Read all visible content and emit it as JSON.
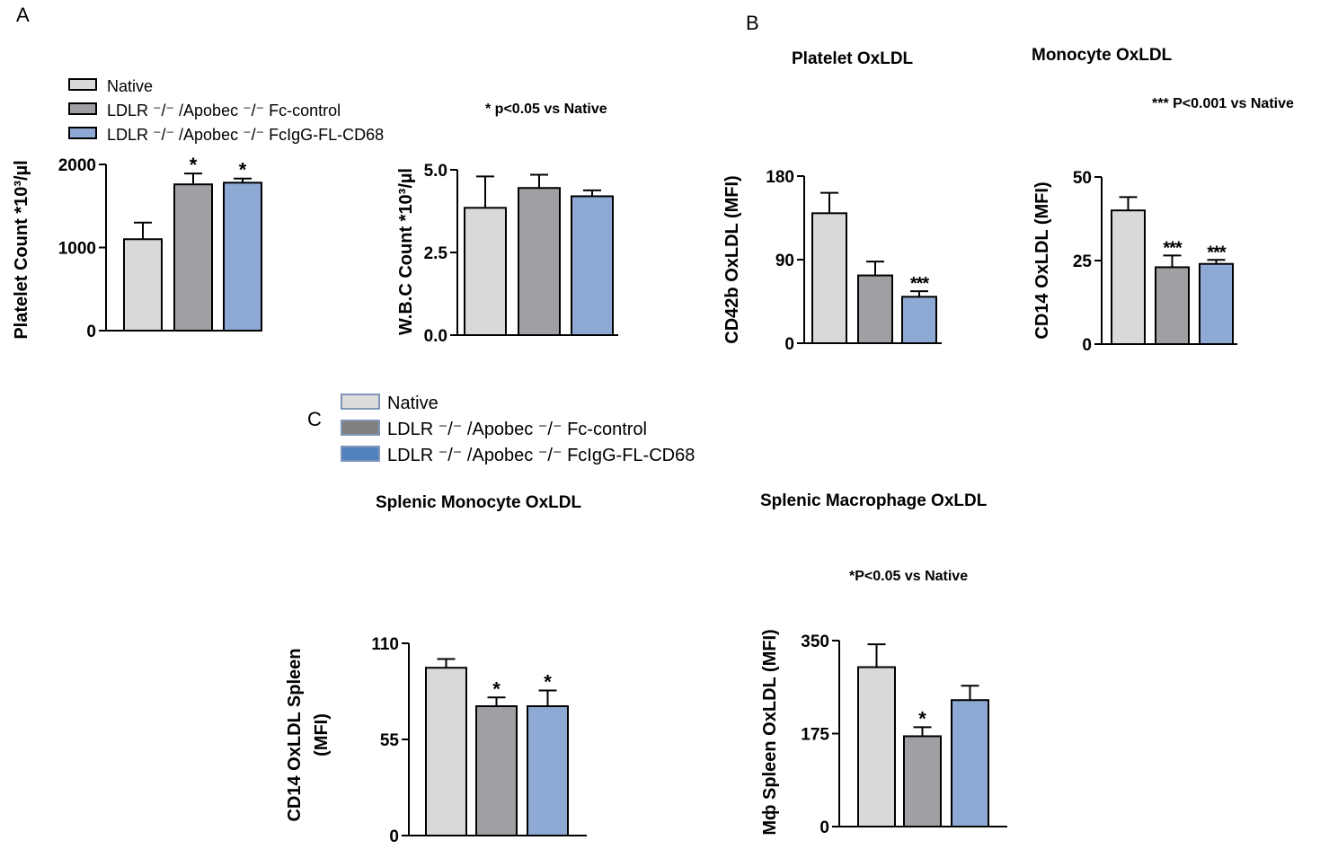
{
  "panels": {
    "a": "A",
    "b": "B",
    "c": "C"
  },
  "legend_a": {
    "items": [
      {
        "pre": "Native",
        "post": "",
        "color": "#d9d9d9"
      },
      {
        "pre": "LDLR ⁻/⁻ /Apobec ⁻/⁻ Fc-control",
        "post": "",
        "color": "#a0a0a4"
      },
      {
        "pre": "LDLR ⁻/⁻ /Apobec ⁻/⁻ FcIgG-FL-CD68",
        "post": "",
        "color": "#8eaad4"
      }
    ]
  },
  "legend_c": {
    "items": [
      {
        "label": "Native",
        "color": "#dcdcdc"
      },
      {
        "label": "LDLR ⁻/⁻ /Apobec ⁻/⁻ Fc-control",
        "color": "#808080"
      },
      {
        "label": "LDLR ⁻/⁻ /Apobec ⁻/⁻ FcIgG-FL-CD68",
        "color": "#4f81bd"
      }
    ]
  },
  "notes": {
    "a": "* p<0.05 vs Native",
    "b": "*** P<0.001 vs Native",
    "c": "*P<0.05 vs Native"
  },
  "titles": {
    "platelet_oxldl": "Platelet OxLDL",
    "monocyte_oxldl": "Monocyte OxLDL",
    "splenic_monocyte": "Splenic Monocyte OxLDL",
    "splenic_macrophage": "Splenic Macrophage OxLDL"
  },
  "colors": {
    "native": "#d9d9d9",
    "fc_control": "#a0a0a4",
    "fcigg": "#8eaad4"
  },
  "chart_data": [
    {
      "id": "platelet_count",
      "type": "bar",
      "panel": "A",
      "title": "",
      "ylabel": "Platelet Count *10³/µl",
      "ylim": [
        0,
        2000
      ],
      "yticks": [
        "0",
        "1000",
        "2000"
      ],
      "ytick_values": [
        0,
        1000,
        2000
      ],
      "values": [
        1100,
        1760,
        1780
      ],
      "errors": [
        200,
        130,
        50
      ],
      "annotations": [
        "",
        "*",
        "*"
      ]
    },
    {
      "id": "wbc_count",
      "type": "bar",
      "panel": "A",
      "title": "",
      "ylabel": "W.B.C Count *10³/µl",
      "ylim": [
        0,
        5.0
      ],
      "yticks": [
        "0.0",
        "2.5",
        "5.0"
      ],
      "ytick_values": [
        0,
        2.5,
        5.0
      ],
      "values": [
        3.85,
        4.45,
        4.2
      ],
      "errors": [
        0.95,
        0.4,
        0.18
      ],
      "annotations": [
        "",
        "",
        ""
      ]
    },
    {
      "id": "platelet_oxldl",
      "type": "bar",
      "panel": "B",
      "title": "Platelet OxLDL",
      "ylabel": "CD42b OxLDL (MFI)",
      "ylim": [
        0,
        180
      ],
      "yticks": [
        "0",
        "90",
        "180"
      ],
      "ytick_values": [
        0,
        90,
        180
      ],
      "values": [
        140,
        73,
        50
      ],
      "errors": [
        22,
        15,
        6
      ],
      "annotations": [
        "",
        "",
        "***"
      ]
    },
    {
      "id": "monocyte_oxldl",
      "type": "bar",
      "panel": "B",
      "title": "Monocyte OxLDL",
      "ylabel": "CD14 OxLDL (MFI)",
      "ylim": [
        0,
        50
      ],
      "yticks": [
        "0",
        "25",
        "50"
      ],
      "ytick_values": [
        0,
        25,
        50
      ],
      "values": [
        40,
        23,
        24
      ],
      "errors": [
        4,
        3.5,
        1.2
      ],
      "annotations": [
        "",
        "***",
        "***"
      ]
    },
    {
      "id": "splenic_monocyte",
      "type": "bar",
      "panel": "C",
      "title": "Splenic Monocyte OxLDL",
      "ylabel": [
        "CD14 OxLDL Spleen",
        "(MFI)"
      ],
      "ylim": [
        0,
        110
      ],
      "yticks": [
        "0",
        "55",
        "110"
      ],
      "ytick_values": [
        0,
        55,
        110
      ],
      "values": [
        96,
        74,
        74
      ],
      "errors": [
        5,
        5,
        9
      ],
      "annotations": [
        "",
        "*",
        "*"
      ]
    },
    {
      "id": "splenic_macrophage",
      "type": "bar",
      "panel": "C",
      "title": "Splenic Macrophage OxLDL",
      "ylabel": "Mф Spleen OxLDL (MFI)",
      "ylim": [
        0,
        350
      ],
      "yticks": [
        "0",
        "175",
        "350"
      ],
      "ytick_values": [
        0,
        175,
        350
      ],
      "values": [
        300,
        170,
        238
      ],
      "errors": [
        43,
        17,
        27
      ],
      "annotations": [
        "",
        "*",
        ""
      ]
    }
  ]
}
